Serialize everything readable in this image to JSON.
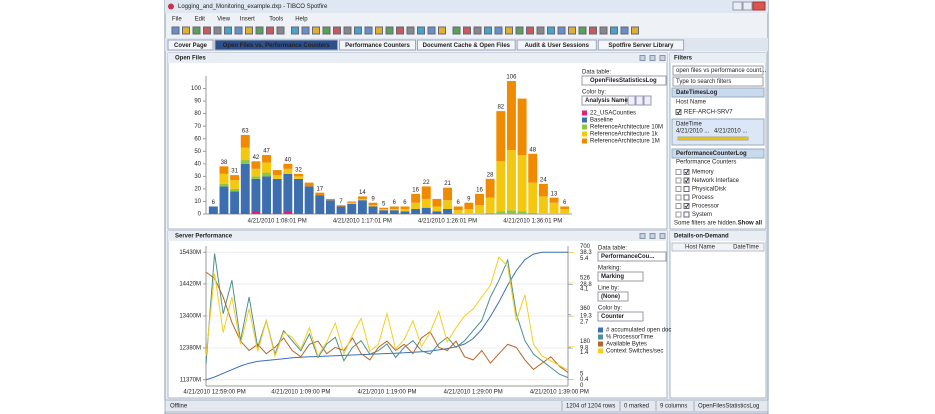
{
  "window": {
    "title": "Logging_and_Monitoring_example.dxp - TIBCO Spotfire",
    "menu": [
      "File",
      "Edit",
      "View",
      "Insert",
      "Tools",
      "Help"
    ]
  },
  "tabs": [
    "Cover Page",
    "Open Files vs. Performance Counters",
    "Performance Counters",
    "Document Cache & Open Files",
    "Audit & User Sessions",
    "Spotfire Server Library"
  ],
  "active_tab": 1,
  "chart_data": [
    {
      "type": "bar",
      "title": "Open Files",
      "stacked": true,
      "grid": false,
      "categories": [
        null,
        null,
        null,
        null,
        null,
        null,
        "4/21/2010 1:08:01 PM",
        null,
        null,
        null,
        null,
        null,
        null,
        null,
        "4/21/2010 1:17:01 PM",
        null,
        null,
        null,
        null,
        null,
        null,
        null,
        "4/21/2010 1:26:01 PM",
        null,
        null,
        null,
        null,
        null,
        null,
        null,
        "4/21/2010 1:36:01 PM",
        null,
        null,
        null
      ],
      "series": [
        {
          "name": "22_USACounties",
          "color": "#e0207a",
          "values": [
            0,
            0,
            0,
            0,
            2,
            0,
            0,
            2,
            0,
            0,
            0,
            0,
            0,
            0,
            0,
            0,
            0,
            0,
            0,
            0,
            0,
            0,
            0,
            0,
            0,
            0,
            0,
            0,
            0,
            0,
            0,
            0,
            0,
            0
          ]
        },
        {
          "name": "Baseline",
          "color": "#3d6fb0",
          "values": [
            6,
            22,
            18,
            40,
            26,
            30,
            28,
            30,
            28,
            22,
            15,
            11,
            6,
            8,
            11,
            6,
            3,
            3,
            2,
            4,
            5,
            2,
            4,
            0,
            0,
            0,
            0,
            0,
            0,
            0,
            0,
            0,
            0,
            0
          ]
        },
        {
          "name": "ReferenceArchitecture 10M",
          "color": "#8dc63f",
          "values": [
            0,
            2,
            2,
            3,
            2,
            3,
            0,
            0,
            0,
            0,
            0,
            0,
            0,
            0,
            0,
            0,
            0,
            0,
            0,
            0,
            0,
            0,
            0,
            0,
            0,
            0,
            1,
            2,
            3,
            2,
            1,
            0,
            0,
            0
          ]
        },
        {
          "name": "ReferenceArchitecture 1k",
          "color": "#f2c811",
          "values": [
            0,
            8,
            7,
            10,
            6,
            8,
            3,
            4,
            2,
            0,
            0,
            0,
            0,
            1,
            1,
            1,
            1,
            1,
            2,
            5,
            7,
            4,
            7,
            3,
            4,
            7,
            12,
            40,
            48,
            45,
            24,
            14,
            9,
            4
          ]
        },
        {
          "name": "ReferenceArchitecture 1M",
          "color": "#f08a00",
          "values": [
            0,
            6,
            4,
            10,
            6,
            6,
            4,
            4,
            2,
            3,
            2,
            1,
            1,
            1,
            2,
            2,
            1,
            2,
            2,
            7,
            10,
            6,
            10,
            3,
            5,
            9,
            15,
            40,
            55,
            45,
            23,
            10,
            4,
            2
          ]
        }
      ],
      "totals": [
        6,
        38,
        31,
        63,
        42,
        47,
        null,
        40,
        32,
        null,
        17,
        null,
        7,
        null,
        14,
        9,
        5,
        6,
        6,
        16,
        22,
        null,
        21,
        6,
        9,
        16,
        28,
        82,
        106,
        null,
        48,
        24,
        13,
        6
      ],
      "ylim": [
        0,
        110
      ],
      "yticks": [
        0,
        10,
        20,
        30,
        40,
        50,
        60,
        70,
        80,
        90,
        100
      ],
      "panel": {
        "data_table_label": "Data table:",
        "data_table": "OpenFilesStatisticsLog",
        "color_by_label": "Color by:",
        "color_by": "Analysis Name"
      }
    },
    {
      "type": "line",
      "title": "Server Performance",
      "grid": true,
      "categories": [
        null,
        "4/21/2010 12:59:00 PM",
        null,
        null,
        null,
        null,
        null,
        null,
        null,
        null,
        null,
        "4/21/2010 1:09:00 PM",
        null,
        null,
        null,
        null,
        null,
        null,
        null,
        null,
        null,
        "4/21/2010 1:19:00 PM",
        null,
        null,
        null,
        null,
        null,
        null,
        null,
        null,
        null,
        "4/21/2010 1:29:00 PM",
        null,
        null,
        null,
        null,
        null,
        null,
        null,
        null,
        null,
        "4/21/2010 1:39:00 PM",
        null
      ],
      "series": [
        {
          "name": "# accumulated open doc",
          "color": "#3b6fb6",
          "axis": "y2",
          "values": [
            5,
            20,
            40,
            60,
            80,
            95,
            105,
            110,
            115,
            120,
            125,
            128,
            130,
            132,
            134,
            136,
            138,
            140,
            142,
            144,
            146,
            148,
            150,
            152,
            155,
            158,
            162,
            168,
            175,
            185,
            200,
            230,
            280,
            350,
            430,
            520,
            600,
            660,
            690,
            700,
            700,
            700,
            700
          ]
        },
        {
          "name": "% ProcessorTime",
          "color": "#4f8f8f",
          "axis": "y3",
          "values": [
            5,
            38,
            20,
            30,
            12,
            25,
            10,
            18,
            8,
            15,
            12,
            9,
            14,
            7,
            11,
            13,
            6,
            10,
            12,
            8,
            9,
            11,
            7,
            10,
            12,
            9,
            8,
            11,
            13,
            10,
            12,
            15,
            18,
            25,
            30,
            36,
            20,
            12,
            8,
            6,
            4,
            2,
            1
          ]
        },
        {
          "name": "Available Bytes",
          "color": "#b5652a",
          "axis": "y",
          "values": [
            14800,
            14600,
            14000,
            13200,
            12600,
            12300,
            12500,
            12200,
            12400,
            12700,
            12300,
            12100,
            12500,
            12600,
            12200,
            12400,
            12300,
            12700,
            12200,
            12000,
            12400,
            12600,
            12300,
            12500,
            12200,
            12700,
            12900,
            12400,
            12300,
            12600,
            12100,
            12000,
            12300,
            11900,
            12200,
            12500,
            12400,
            12000,
            11700,
            11900,
            12100,
            11800,
            11600
          ]
        },
        {
          "name": "Context Switches/sec",
          "color": "#f3cf1f",
          "axis": "y4",
          "values": [
            1,
            4.5,
            2,
            3.5,
            1.5,
            3,
            1.2,
            2.5,
            1,
            2,
            1.8,
            1.3,
            2.2,
            1,
            1.6,
            2.4,
            1.1,
            1.9,
            2.6,
            1.2,
            1.5,
            2.8,
            1.3,
            1.7,
            2.5,
            1.4,
            2,
            2.9,
            1.6,
            2.2,
            2.7,
            3,
            3.5,
            4,
            5.2,
            4.8,
            2.5,
            3.6,
            1.5,
            1,
            0.8,
            0.6,
            0.4
          ]
        }
      ],
      "ylim": [
        11170,
        15630
      ],
      "yticks": [
        {
          "value": 11370,
          "label": "11370M"
        },
        {
          "value": 12380,
          "label": "12380M"
        },
        {
          "value": 13400,
          "label": "13400M"
        },
        {
          "value": 14420,
          "label": "14420M"
        },
        {
          "value": 15430,
          "label": "15430M"
        }
      ],
      "y2lim": [
        -29,
        734
      ],
      "y2ticks": [
        5,
        180,
        360,
        526,
        700
      ],
      "y3lim": [
        -1.5,
        40.2
      ],
      "y3ticks": [
        0.4,
        9.8,
        19.3,
        28.8,
        38.3
      ],
      "y4lim": [
        -0.27,
        5.67
      ],
      "y4ticks": [
        0,
        1.4,
        2.7,
        4.1,
        5.4
      ],
      "panel": {
        "data_table_label": "Data table:",
        "data_table": "PerformanceCou...",
        "marking_label": "Marking:",
        "marking": "Marking",
        "line_by_label": "Line by:",
        "line_by": "(None)",
        "color_by_label": "Color by:",
        "color_by": "Counter"
      }
    }
  ],
  "filters": {
    "title": "Filters",
    "scheme": "open files vs performance count...",
    "search": "Type to search filters",
    "group1": "DateTimesLog",
    "host_label": "Host Name",
    "host": {
      "label": "REF-ARCH-SRV7",
      "checked": true
    },
    "datetime_label": "DateTime",
    "range": [
      "4/21/2010 ...",
      "4/21/2010 ..."
    ],
    "group2": "PerformanceCounterLog",
    "counters_label": "Performance Counters",
    "items": [
      {
        "label": "Memory",
        "checked": true
      },
      {
        "label": "Network Interface",
        "checked": true
      },
      {
        "label": "PhysicalDisk",
        "checked": false
      },
      {
        "label": "Process",
        "checked": false
      },
      {
        "label": "Processor",
        "checked": true
      },
      {
        "label": "System",
        "checked": false
      }
    ],
    "hidden_note": "Some filters are hidden.",
    "show_all": "Show all"
  },
  "details": {
    "title": "Details-on-Demand",
    "columns": [
      "Host Name",
      "DateTime"
    ]
  },
  "status": {
    "left": "Offline",
    "fields": [
      "1204 of 1204 rows",
      "0 marked",
      "9 columns",
      "OpenFilesStatisticsLog"
    ]
  }
}
